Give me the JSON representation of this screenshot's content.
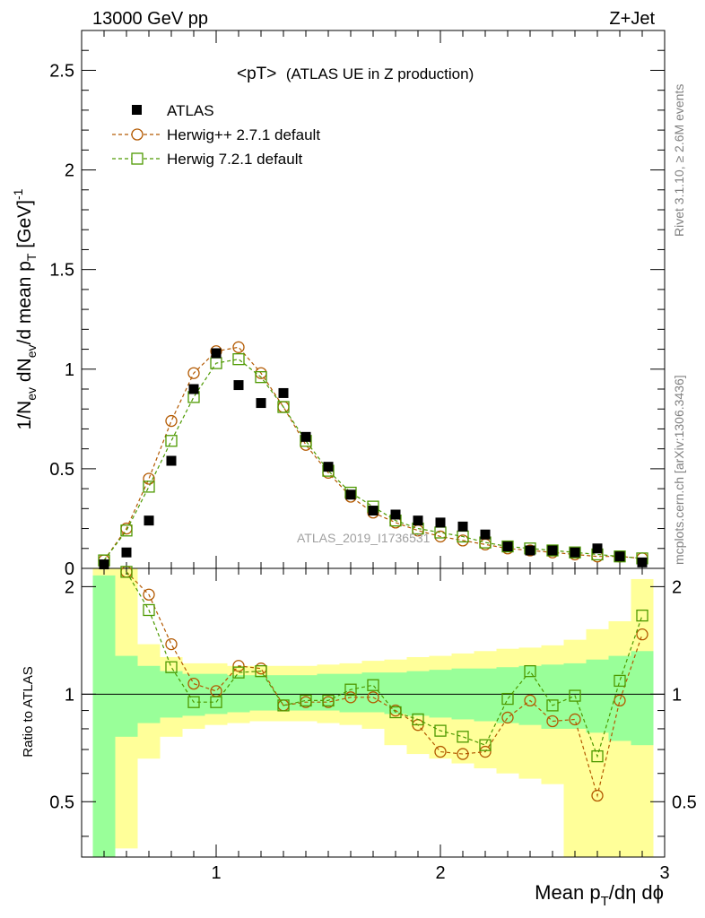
{
  "header": {
    "left": "13000 GeV pp",
    "right": "Z+Jet"
  },
  "side_labels": {
    "rivet": "Rivet 3.1.10, ≥ 2.6M events",
    "mcplots": "mcplots.cern.ch [arXiv:1306.3436]"
  },
  "chart_data": [
    {
      "type": "scatter",
      "title": "<pT> (ATLAS UE in Z production)",
      "title_main": "<pT>",
      "title_sub": "(ATLAS UE in Z production)",
      "watermark": "ATLAS_2019_I1736531",
      "ylabel": "1/N_ev dN_ev/d mean p_T [GeV]^-1",
      "xlim": [
        0.4,
        3.0
      ],
      "ylim": [
        0,
        2.7
      ],
      "yticks": [
        0,
        0.5,
        1,
        1.5,
        2,
        2.5
      ],
      "ytick_labels": [
        "0",
        "0.5",
        "1",
        "1.5",
        "2",
        "2.5"
      ],
      "legend_position": "top-left",
      "series": [
        {
          "name": "ATLAS",
          "color": "#000000",
          "marker": "filled-square",
          "x": [
            0.5,
            0.6,
            0.7,
            0.8,
            0.9,
            1.0,
            1.1,
            1.2,
            1.3,
            1.4,
            1.5,
            1.6,
            1.7,
            1.8,
            1.9,
            2.0,
            2.1,
            2.2,
            2.3,
            2.4,
            2.5,
            2.6,
            2.7,
            2.8,
            2.9
          ],
          "y": [
            0.02,
            0.08,
            0.24,
            0.54,
            0.9,
            1.08,
            0.92,
            0.83,
            0.88,
            0.66,
            0.51,
            0.37,
            0.29,
            0.27,
            0.24,
            0.23,
            0.21,
            0.17,
            0.11,
            0.09,
            0.09,
            0.08,
            0.1,
            0.06,
            0.03
          ]
        },
        {
          "name": "Herwig++ 2.7.1 default",
          "color": "#b35900",
          "marker": "open-circle",
          "x": [
            0.5,
            0.6,
            0.7,
            0.8,
            0.9,
            1.0,
            1.1,
            1.2,
            1.3,
            1.4,
            1.5,
            1.6,
            1.7,
            1.8,
            1.9,
            2.0,
            2.1,
            2.2,
            2.3,
            2.4,
            2.5,
            2.6,
            2.7,
            2.8,
            2.9
          ],
          "y": [
            0.04,
            0.2,
            0.45,
            0.74,
            0.98,
            1.09,
            1.11,
            0.98,
            0.81,
            0.62,
            0.48,
            0.36,
            0.28,
            0.23,
            0.19,
            0.16,
            0.14,
            0.12,
            0.1,
            0.09,
            0.08,
            0.07,
            0.06,
            0.06,
            0.05
          ]
        },
        {
          "name": "Herwig 7.2.1 default",
          "color": "#4d9900",
          "marker": "open-square",
          "x": [
            0.5,
            0.6,
            0.7,
            0.8,
            0.9,
            1.0,
            1.1,
            1.2,
            1.3,
            1.4,
            1.5,
            1.6,
            1.7,
            1.8,
            1.9,
            2.0,
            2.1,
            2.2,
            2.3,
            2.4,
            2.5,
            2.6,
            2.7,
            2.8,
            2.9
          ],
          "y": [
            0.04,
            0.19,
            0.41,
            0.64,
            0.86,
            1.03,
            1.05,
            0.96,
            0.81,
            0.64,
            0.49,
            0.38,
            0.31,
            0.24,
            0.2,
            0.18,
            0.16,
            0.13,
            0.11,
            0.1,
            0.09,
            0.08,
            0.07,
            0.06,
            0.05
          ]
        }
      ]
    },
    {
      "type": "scatter",
      "ylabel": "Ratio to ATLAS",
      "xlabel": "Mean p_T/dη dϕ",
      "xlim": [
        0.4,
        3.0
      ],
      "ylim": [
        0.35,
        2.25
      ],
      "yscale": "log",
      "yticks": [
        0.5,
        1,
        2
      ],
      "ytick_labels": [
        "0.5",
        "1",
        "2"
      ],
      "xticks": [
        1,
        2,
        3
      ],
      "xtick_labels": [
        "1",
        "2",
        "3"
      ],
      "reference_line": 1,
      "bands": {
        "bin_edges": [
          0.45,
          0.55,
          0.65,
          0.75,
          0.85,
          0.95,
          1.05,
          1.15,
          1.25,
          1.35,
          1.45,
          1.55,
          1.65,
          1.75,
          1.85,
          1.95,
          2.05,
          2.15,
          2.25,
          2.35,
          2.45,
          2.55,
          2.65,
          2.75,
          2.85,
          2.95
        ],
        "green_low": [
          0.35,
          0.76,
          0.83,
          0.86,
          0.87,
          0.88,
          0.89,
          0.9,
          0.9,
          0.9,
          0.9,
          0.89,
          0.89,
          0.88,
          0.87,
          0.86,
          0.85,
          0.84,
          0.83,
          0.82,
          0.8,
          0.8,
          0.78,
          0.74,
          0.72
        ],
        "green_high": [
          2.15,
          1.28,
          1.2,
          1.16,
          1.14,
          1.14,
          1.13,
          1.13,
          1.13,
          1.13,
          1.14,
          1.14,
          1.15,
          1.15,
          1.16,
          1.17,
          1.18,
          1.18,
          1.19,
          1.2,
          1.21,
          1.22,
          1.25,
          1.28,
          1.32
        ],
        "yellow_low": [
          0.35,
          0.37,
          0.66,
          0.76,
          0.8,
          0.82,
          0.83,
          0.84,
          0.84,
          0.84,
          0.83,
          0.82,
          0.8,
          0.72,
          0.68,
          0.66,
          0.64,
          0.62,
          0.6,
          0.58,
          0.56,
          0.35,
          0.35,
          0.35,
          0.35
        ],
        "yellow_high": [
          2.25,
          2.25,
          1.38,
          1.27,
          1.22,
          1.22,
          1.2,
          1.2,
          1.2,
          1.2,
          1.21,
          1.22,
          1.24,
          1.25,
          1.27,
          1.28,
          1.3,
          1.32,
          1.34,
          1.35,
          1.37,
          1.42,
          1.52,
          1.6,
          2.1
        ],
        "green_color": "#99ff99",
        "yellow_color": "#ffff99"
      },
      "series": [
        {
          "name": "Herwig++ 2.7.1 default",
          "color": "#b35900",
          "marker": "open-circle",
          "x": [
            0.6,
            0.7,
            0.8,
            0.9,
            1.0,
            1.1,
            1.2,
            1.3,
            1.4,
            1.5,
            1.6,
            1.7,
            1.8,
            1.9,
            2.0,
            2.1,
            2.2,
            2.3,
            2.4,
            2.5,
            2.6,
            2.7,
            2.8,
            2.9
          ],
          "y": [
            2.2,
            1.9,
            1.38,
            1.07,
            1.02,
            1.2,
            1.18,
            0.93,
            0.95,
            0.95,
            0.98,
            0.98,
            0.9,
            0.82,
            0.69,
            0.68,
            0.69,
            0.86,
            0.96,
            0.84,
            0.85,
            0.52,
            0.96,
            1.47
          ]
        },
        {
          "name": "Herwig 7.2.1 default",
          "color": "#4d9900",
          "marker": "open-square",
          "x": [
            0.6,
            0.7,
            0.8,
            0.9,
            1.0,
            1.1,
            1.2,
            1.3,
            1.4,
            1.5,
            1.6,
            1.7,
            1.8,
            1.9,
            2.0,
            2.1,
            2.2,
            2.3,
            2.4,
            2.5,
            2.6,
            2.7,
            2.8,
            2.9
          ],
          "y": [
            2.2,
            1.72,
            1.19,
            0.95,
            0.95,
            1.15,
            1.16,
            0.93,
            0.96,
            0.96,
            1.03,
            1.06,
            0.89,
            0.85,
            0.79,
            0.76,
            0.72,
            0.97,
            1.16,
            0.93,
            0.99,
            0.67,
            1.09,
            1.66
          ]
        }
      ]
    }
  ]
}
